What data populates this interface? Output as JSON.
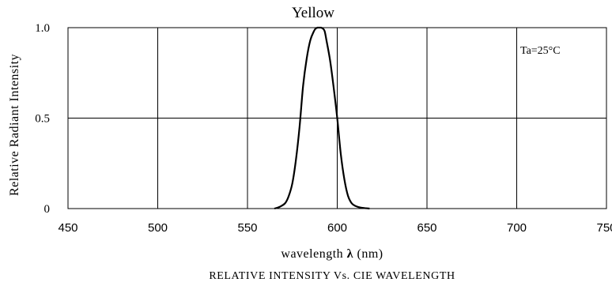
{
  "chart_data": {
    "type": "line",
    "title": "Yellow",
    "xlabel_prefix": "wavelength ",
    "xlabel_symbol": "λ",
    "xlabel_suffix": " (nm)",
    "ylabel": "Relative Radiant Intensity",
    "caption": "RELATIVE INTENSITY Vs. CIE WAVELENGTH",
    "annotation": "Ta=25°C",
    "xlim": [
      450,
      750
    ],
    "ylim": [
      0,
      1.0
    ],
    "x_ticks": [
      450,
      500,
      550,
      600,
      650,
      700,
      750
    ],
    "x_tick_labels": [
      "450",
      "500",
      "550",
      "600",
      "650",
      "700",
      "750"
    ],
    "y_ticks": [
      0,
      0.5,
      1.0
    ],
    "y_tick_labels": [
      "0",
      "0.5",
      "1.0"
    ],
    "grid": true,
    "line_color": "#000000",
    "series": [
      {
        "x": [
          565,
          568,
          571,
          573,
          575,
          577,
          579,
          581,
          583,
          585,
          587,
          588,
          589,
          590,
          591,
          592,
          593,
          594,
          596,
          598,
          600,
          602,
          604,
          606,
          608,
          610,
          612,
          614,
          616,
          618
        ],
        "y": [
          0.0,
          0.01,
          0.03,
          0.07,
          0.14,
          0.27,
          0.45,
          0.68,
          0.83,
          0.93,
          0.98,
          0.995,
          1.0,
          1.0,
          1.0,
          0.995,
          0.98,
          0.93,
          0.82,
          0.67,
          0.5,
          0.3,
          0.16,
          0.07,
          0.03,
          0.015,
          0.008,
          0.004,
          0.002,
          0.0
        ]
      }
    ]
  }
}
